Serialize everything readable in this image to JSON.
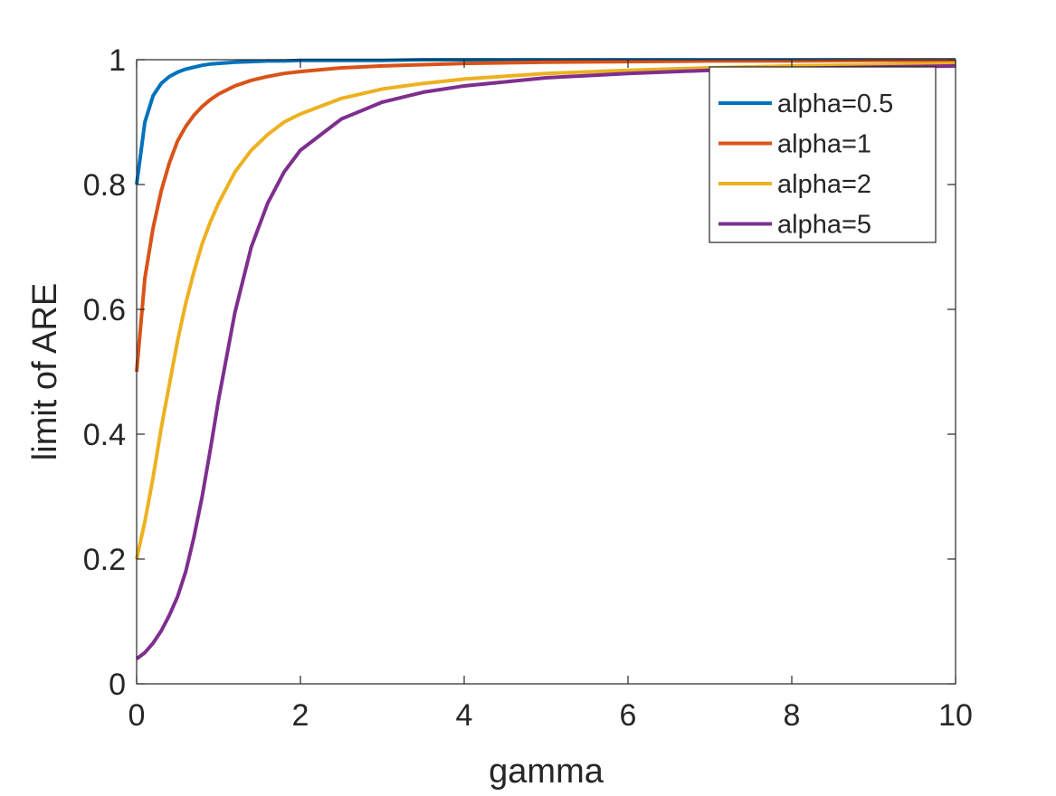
{
  "chart_data": {
    "type": "line",
    "title": "",
    "xlabel": "gamma",
    "ylabel": "limit of ARE",
    "xlim": [
      0,
      10
    ],
    "ylim": [
      0,
      1
    ],
    "xticks": [
      0,
      2,
      4,
      6,
      8,
      10
    ],
    "yticks": [
      0,
      0.2,
      0.4,
      0.6,
      0.8,
      1
    ],
    "xtick_labels": [
      "0",
      "2",
      "4",
      "6",
      "8",
      "10"
    ],
    "ytick_labels": [
      "0",
      "0.2",
      "0.4",
      "0.6",
      "0.8",
      "1"
    ],
    "grid": false,
    "box": true,
    "legend_position": "top-right",
    "x": [
      0,
      0.1,
      0.2,
      0.3,
      0.4,
      0.5,
      0.6,
      0.7,
      0.8,
      0.9,
      1.0,
      1.2,
      1.4,
      1.6,
      1.8,
      2.0,
      2.5,
      3.0,
      3.5,
      4.0,
      5.0,
      6.0,
      7.0,
      8.0,
      9.0,
      10.0
    ],
    "series": [
      {
        "name": "alpha=0.5",
        "color": "#0072bd",
        "values": [
          0.8,
          0.9,
          0.942,
          0.962,
          0.973,
          0.98,
          0.985,
          0.988,
          0.991,
          0.993,
          0.994,
          0.996,
          0.997,
          0.998,
          0.998,
          0.999,
          0.999,
          0.999,
          1.0,
          1.0,
          1.0,
          1.0,
          1.0,
          1.0,
          1.0,
          1.0
        ]
      },
      {
        "name": "alpha=1",
        "color": "#d95319",
        "values": [
          0.5,
          0.65,
          0.73,
          0.79,
          0.835,
          0.87,
          0.893,
          0.911,
          0.925,
          0.936,
          0.945,
          0.958,
          0.967,
          0.973,
          0.978,
          0.981,
          0.987,
          0.99,
          0.992,
          0.994,
          0.996,
          0.997,
          0.998,
          0.998,
          0.999,
          0.999
        ]
      },
      {
        "name": "alpha=2",
        "color": "#edb120",
        "values": [
          0.2,
          0.26,
          0.33,
          0.41,
          0.48,
          0.55,
          0.61,
          0.66,
          0.705,
          0.74,
          0.77,
          0.82,
          0.855,
          0.88,
          0.9,
          0.913,
          0.938,
          0.953,
          0.962,
          0.969,
          0.978,
          0.983,
          0.987,
          0.99,
          0.992,
          0.994
        ]
      },
      {
        "name": "alpha=5",
        "color": "#7e2f8e",
        "values": [
          0.04,
          0.05,
          0.065,
          0.085,
          0.11,
          0.14,
          0.18,
          0.235,
          0.3,
          0.375,
          0.455,
          0.595,
          0.7,
          0.77,
          0.82,
          0.855,
          0.905,
          0.932,
          0.948,
          0.958,
          0.971,
          0.978,
          0.983,
          0.986,
          0.988,
          0.99
        ]
      }
    ]
  }
}
